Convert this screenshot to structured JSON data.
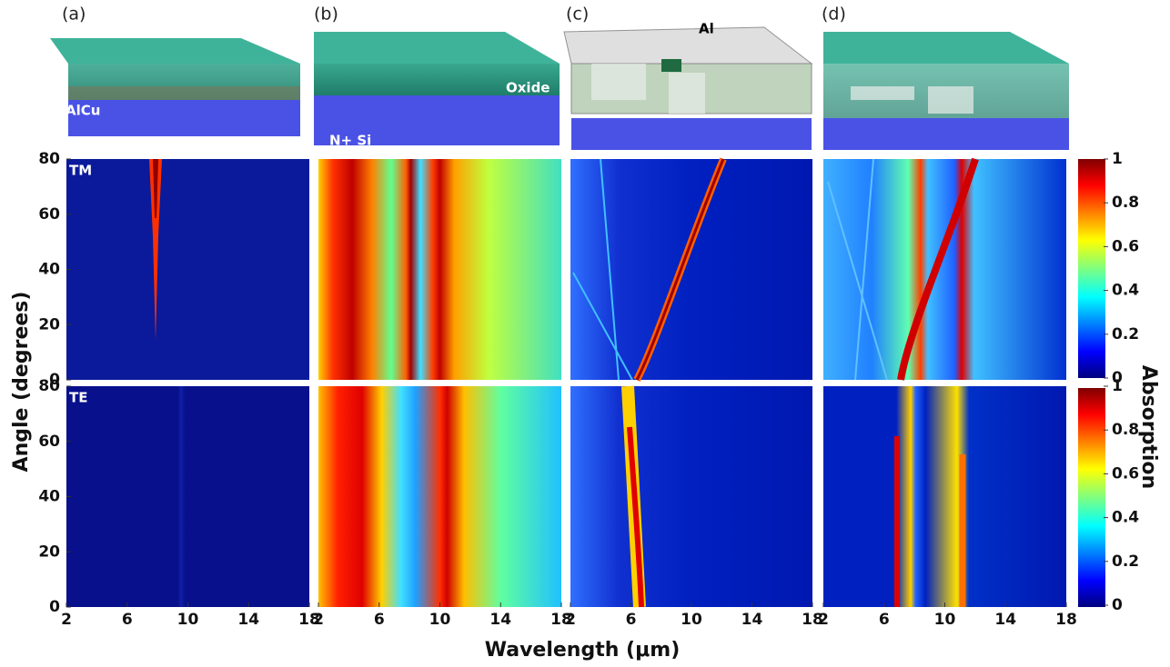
{
  "panels": [
    {
      "label": "(a)",
      "materials": [
        "AlCu"
      ]
    },
    {
      "label": "(b)",
      "materials": [
        "Oxide",
        "N+ Si"
      ]
    },
    {
      "label": "(c)",
      "materials": [
        "Al"
      ]
    },
    {
      "label": "(d)",
      "materials": []
    }
  ],
  "modes": [
    "TM",
    "TE"
  ],
  "y_axis": {
    "label": "Angle (degrees)",
    "lim": [
      0,
      80
    ],
    "ticks": [
      0,
      20,
      40,
      60,
      80
    ]
  },
  "x_axis": {
    "label": "Wavelength (μm)",
    "lim": [
      2,
      18
    ],
    "ticks": [
      2,
      6,
      10,
      14,
      18
    ]
  },
  "colorbar": {
    "label": "Absorption",
    "lim": [
      0,
      1
    ],
    "ticks": [
      0,
      0.2,
      0.4,
      0.6,
      0.8,
      1
    ]
  }
}
